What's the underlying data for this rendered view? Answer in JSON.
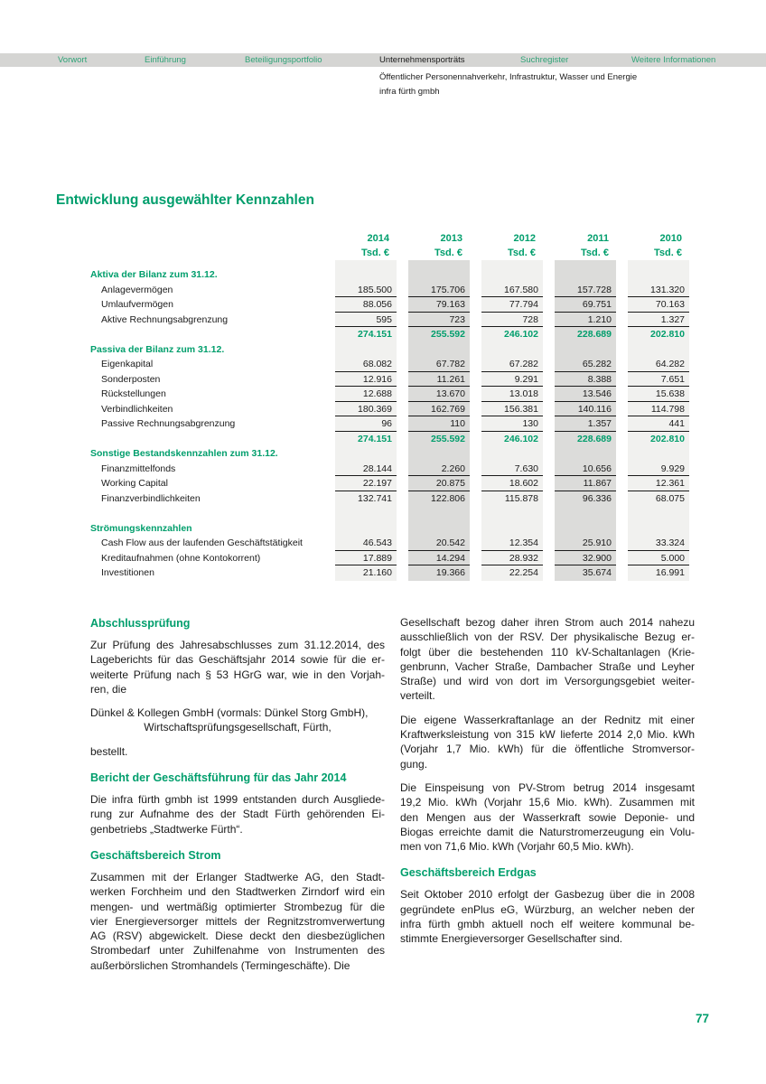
{
  "colors": {
    "accent": "#009E6C",
    "nav_link": "#2FA377",
    "nav_bar_bg": "#D5D5D3",
    "column_light": "#F1F1EF",
    "column_dark": "#DCDCDA",
    "text": "#1A1A1A"
  },
  "nav": {
    "items": [
      {
        "label": "Vorwort",
        "active": false
      },
      {
        "label": "Einführung",
        "active": false
      },
      {
        "label": "Beteiligungsportfolio",
        "active": false
      },
      {
        "label": "Unternehmensporträts",
        "active": true
      },
      {
        "label": "Suchregister",
        "active": false
      },
      {
        "label": "Weitere Informationen",
        "active": false
      }
    ]
  },
  "header": {
    "section_line": "Öffentlicher Personennahverkehr, Infrastruktur, Wasser und Energie",
    "company_line": "infra fürth gmbh"
  },
  "title": "Entwicklung ausgewählter Kennzahlen",
  "table": {
    "years": [
      "2014",
      "2013",
      "2012",
      "2011",
      "2010"
    ],
    "unit": "Tsd. €",
    "rows": [
      {
        "type": "section",
        "label": "Aktiva der Bilanz zum 31.12."
      },
      {
        "type": "data",
        "underline": true,
        "label": "Anlagevermögen",
        "values": [
          "185.500",
          "175.706",
          "167.580",
          "157.728",
          "131.320"
        ]
      },
      {
        "type": "data",
        "underline": true,
        "label": "Umlaufvermögen",
        "values": [
          "88.056",
          "79.163",
          "77.794",
          "69.751",
          "70.163"
        ]
      },
      {
        "type": "data",
        "underline": true,
        "label": "Aktive Rechnungsabgrenzung",
        "values": [
          "595",
          "723",
          "728",
          "1.210",
          "1.327"
        ]
      },
      {
        "type": "total",
        "label": "",
        "values": [
          "274.151",
          "255.592",
          "246.102",
          "228.689",
          "202.810"
        ]
      },
      {
        "type": "section",
        "label": "Passiva der Bilanz zum 31.12."
      },
      {
        "type": "data",
        "underline": true,
        "label": "Eigenkapital",
        "values": [
          "68.082",
          "67.782",
          "67.282",
          "65.282",
          "64.282"
        ]
      },
      {
        "type": "data",
        "underline": true,
        "label": "Sonderposten",
        "values": [
          "12.916",
          "11.261",
          "9.291",
          "8.388",
          "7.651"
        ]
      },
      {
        "type": "data",
        "underline": true,
        "label": "Rückstellungen",
        "values": [
          "12.688",
          "13.670",
          "13.018",
          "13.546",
          "15.638"
        ]
      },
      {
        "type": "data",
        "underline": true,
        "label": "Verbindlichkeiten",
        "values": [
          "180.369",
          "162.769",
          "156.381",
          "140.116",
          "114.798"
        ]
      },
      {
        "type": "data",
        "underline": true,
        "label": "Passive Rechnungsabgrenzung",
        "values": [
          "96",
          "110",
          "130",
          "1.357",
          "441"
        ]
      },
      {
        "type": "total",
        "label": "",
        "values": [
          "274.151",
          "255.592",
          "246.102",
          "228.689",
          "202.810"
        ]
      },
      {
        "type": "section",
        "label": "Sonstige Bestandskennzahlen zum 31.12."
      },
      {
        "type": "data",
        "underline": true,
        "label": "Finanzmittelfonds",
        "values": [
          "28.144",
          "2.260",
          "7.630",
          "10.656",
          "9.929"
        ]
      },
      {
        "type": "data",
        "underline": true,
        "label": "Working Capital",
        "values": [
          "22.197",
          "20.875",
          "18.602",
          "11.867",
          "12.361"
        ]
      },
      {
        "type": "data",
        "underline": false,
        "label": "Finanzverbindlichkeiten",
        "values": [
          "132.741",
          "122.806",
          "115.878",
          "96.336",
          "68.075"
        ]
      },
      {
        "type": "spacer"
      },
      {
        "type": "section",
        "label": "Strömungskennzahlen"
      },
      {
        "type": "data",
        "underline": true,
        "label": "Cash Flow aus der laufenden Geschäftstätigkeit",
        "values": [
          "46.543",
          "20.542",
          "12.354",
          "25.910",
          "33.324"
        ]
      },
      {
        "type": "data",
        "underline": true,
        "label": "Kreditaufnahmen (ohne Kontokorrent)",
        "values": [
          "17.889",
          "14.294",
          "28.932",
          "32.900",
          "5.000"
        ]
      },
      {
        "type": "data",
        "underline": false,
        "label": "Investitionen",
        "values": [
          "21.160",
          "19.366",
          "22.254",
          "35.674",
          "16.991"
        ]
      }
    ]
  },
  "articles": {
    "left": [
      {
        "type": "heading",
        "text": "Abschlussprüfung"
      },
      {
        "type": "para",
        "lines": [
          "Zur Prüfung des Jahresabschlusses zum 31.12.2014, des",
          "Lageberichts für das Geschäftsjahr 2014 sowie für die er-",
          "weiterte Prüfung nach § 53 HGrG war, wie in den Vorjah-",
          "ren, die"
        ]
      },
      {
        "type": "para",
        "lines": [
          {
            "t": "Dünkel & Kollegen GmbH (vormals: Dünkel Storg GmbH),",
            "align": "left"
          },
          {
            "t": "Wirtschaftsprüfungsgesellschaft, Fürth,",
            "align": "center"
          }
        ]
      },
      {
        "type": "para",
        "lines": [
          "bestellt."
        ]
      },
      {
        "type": "heading",
        "text": "Bericht der Geschäftsführung für das Jahr 2014"
      },
      {
        "type": "para",
        "lines": [
          "Die infra fürth gmbh ist 1999 entstanden durch Ausgliede-",
          "rung zur Aufnahme des der Stadt Fürth gehörenden Ei-",
          "genbetriebs „Stadtwerke Fürth“."
        ]
      },
      {
        "type": "heading",
        "text": "Geschäftsbereich Strom"
      },
      {
        "type": "para",
        "lines": [
          "Zusammen mit der Erlanger Stadtwerke AG, den Stadt-",
          "werken Forchheim und den Stadtwerken Zirndorf wird ein",
          "mengen- und wertmäßig optimierter Strombezug für die",
          "vier Energieversorger mittels der Regnitzstromverwertung",
          "AG (RSV) abgewickelt. Diese deckt den diesbezüglichen",
          "Strombedarf unter Zuhilfenahme von Instrumenten des",
          "außerbörslichen Stromhandels (Termingeschäfte). Die"
        ]
      }
    ],
    "right": [
      {
        "type": "para",
        "lines": [
          "Gesellschaft bezog daher ihren Strom auch 2014 nahezu",
          "ausschließlich von der RSV. Der physikalische Bezug er-",
          "folgt über die bestehenden 110 kV-Schaltanlagen (Krie-",
          "genbrunn, Vacher Straße, Dambacher Straße und Leyher",
          "Straße) und wird von dort im Versorgungsgebiet weiter-",
          "verteilt."
        ]
      },
      {
        "type": "para",
        "lines": [
          "Die eigene Wasserkraftanlage an der Rednitz mit einer",
          "Kraftwerksleistung von 315 kW lieferte 2014 2,0 Mio. kWh",
          "(Vorjahr 1,7 Mio. kWh) für die öffentliche Stromversor-",
          "gung."
        ]
      },
      {
        "type": "para",
        "lines": [
          "Die Einspeisung von PV-Strom betrug 2014 insgesamt",
          "19,2 Mio. kWh (Vorjahr 15,6 Mio. kWh). Zusammen mit",
          "den Mengen aus der Wasserkraft sowie Deponie- und",
          "Biogas erreichte damit die Naturstromerzeugung ein Volu-",
          "men von 71,6 Mio. kWh (Vorjahr 60,5 Mio. kWh)."
        ]
      },
      {
        "type": "heading",
        "text": "Geschäftsbereich Erdgas"
      },
      {
        "type": "para",
        "lines": [
          "Seit Oktober 2010 erfolgt der Gasbezug über die in 2008",
          "gegründete enPlus eG, Würzburg, an welcher neben der",
          "infra fürth gmbh aktuell noch elf weitere kommunal be-",
          "stimmte Energieversorger Gesellschafter sind."
        ]
      }
    ]
  },
  "footer": {
    "page_number": "77"
  }
}
